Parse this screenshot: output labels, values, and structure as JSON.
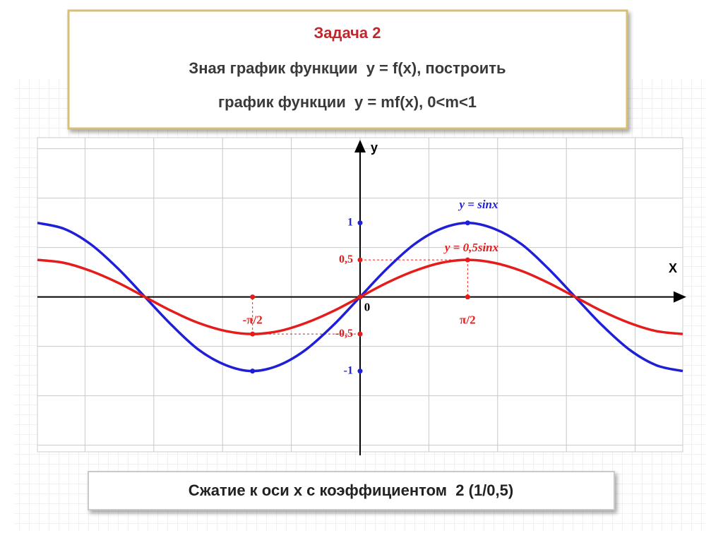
{
  "slide": {
    "heading": "Задача 2",
    "lines": [
      "Зная график функции  y = f(x), построить",
      "график функции  y = mf(x), 0<m<1"
    ],
    "caption": "Сжатие к оси x с коэффициентом  2 (1/0,5)"
  },
  "chart_data": {
    "type": "line",
    "x_label": "X",
    "y_label": "y",
    "x": [
      -4.71,
      -4.32,
      -3.93,
      -3.53,
      -3.14,
      -2.75,
      -2.36,
      -1.96,
      -1.57,
      -1.18,
      -0.79,
      -0.39,
      0,
      0.39,
      0.79,
      1.18,
      1.57,
      1.96,
      2.36,
      2.75,
      3.14,
      3.53,
      3.93,
      4.32,
      4.71
    ],
    "series": [
      {
        "name": "y = sinx",
        "color": "#1f1fd8",
        "values": [
          1,
          0.92,
          0.71,
          0.38,
          0,
          -0.38,
          -0.71,
          -0.92,
          -1,
          -0.92,
          -0.71,
          -0.38,
          0,
          0.38,
          0.71,
          0.92,
          1,
          0.92,
          0.71,
          0.38,
          0,
          -0.38,
          -0.71,
          -0.92,
          -1
        ]
      },
      {
        "name": "y = 0,5sinx",
        "color": "#e51c1c",
        "values": [
          0.5,
          0.46,
          0.35,
          0.19,
          0,
          -0.19,
          -0.35,
          -0.46,
          -0.5,
          -0.46,
          -0.35,
          -0.19,
          0,
          0.19,
          0.35,
          0.46,
          0.5,
          0.46,
          0.35,
          0.19,
          0,
          -0.19,
          -0.35,
          -0.46,
          -0.5
        ]
      }
    ],
    "xlim": [
      -4.71,
      4.71
    ],
    "ylim": [
      -2.09,
      2.15
    ],
    "xticks": [
      {
        "value": -1.57,
        "label": "-π/2"
      },
      0,
      {
        "value": 1.57,
        "label": "π/2"
      }
    ],
    "yticks": [
      1,
      {
        "value": 0.5,
        "label": "0,5"
      },
      {
        "value": -0.5,
        "label": "-0,5"
      },
      {
        "value": -1,
        "label": "-1"
      }
    ]
  }
}
